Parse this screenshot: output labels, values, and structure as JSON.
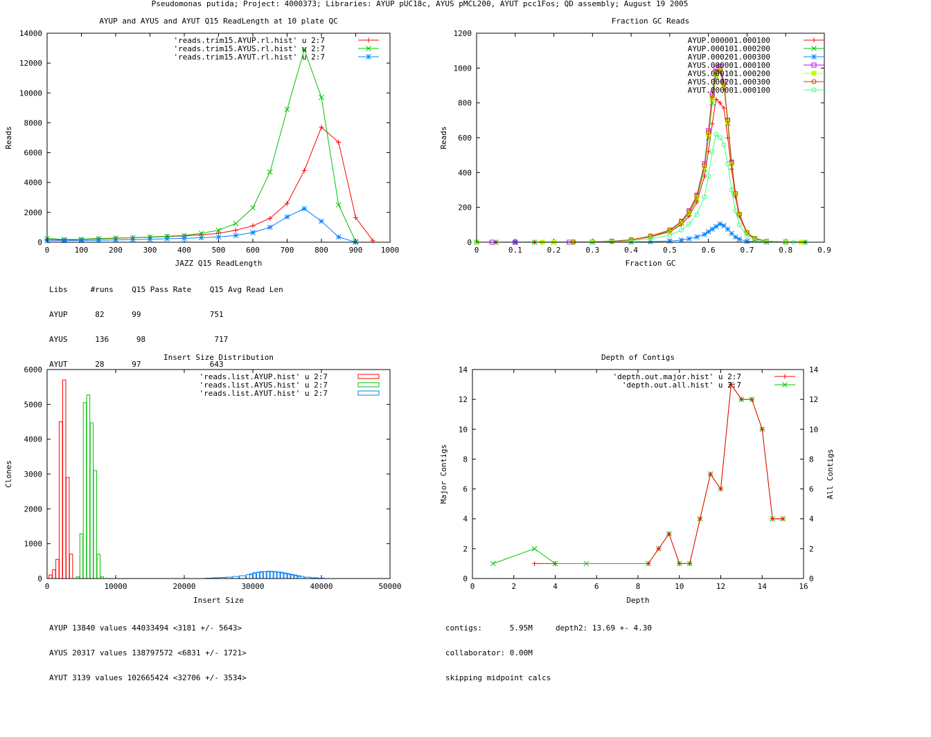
{
  "page_title": "Pseudomonas putida; Project: 4000373; Libraries: AYUP pUC18c, AYUS pMCL200, AYUT pcc1Fos; QD assembly; August 19 2005",
  "colors": {
    "red": "#ff0000",
    "green": "#00c000",
    "blue": "#0080ff",
    "magenta": "#c000ff",
    "yellow": "#c0ff00",
    "darkred": "#c04000",
    "lightgreen": "#40ff80"
  },
  "readlength_notes": {
    "line1": "Libs     #runs    Q15 Pass Rate    Q15 Avg Read Len",
    "line2": "AYUP      82      99               751",
    "line3": "AYUS      136      98               717",
    "line4": "AYUT      28      97               643"
  },
  "insert_notes": {
    "line1": "AYUP 13840 values 44033494 <3181 +/- 5643>",
    "line2": "AYUS 20317 values 138797572 <6831 +/- 1721>",
    "line3": "AYUT 3139 values 102665424 <32706 +/- 3534>"
  },
  "depth_notes": {
    "line1": "contigs:      5.95M     depth2: 13.69 +- 4.30",
    "line2": "collaborator: 0.00M",
    "line3": "skipping midpoint calcs"
  },
  "chart_data": [
    {
      "id": "readlength",
      "type": "line",
      "title": "AYUP and AYUS and AYUT Q15 ReadLength at 10 plate QC",
      "xlabel": "JAZZ Q15 ReadLength",
      "ylabel": "Reads",
      "xlim": [
        0,
        1000
      ],
      "ylim": [
        0,
        14000
      ],
      "xticks": [
        0,
        100,
        200,
        300,
        400,
        500,
        600,
        700,
        800,
        900,
        1000
      ],
      "yticks": [
        0,
        2000,
        4000,
        6000,
        8000,
        10000,
        12000,
        14000
      ],
      "legend": "top-right",
      "series": [
        {
          "name": "'reads.trim15.AYUP.rl.hist' u 2:7",
          "color": "#ff0000",
          "marker": "plus",
          "x": [
            0,
            50,
            100,
            150,
            200,
            250,
            300,
            350,
            400,
            450,
            500,
            550,
            600,
            650,
            700,
            750,
            800,
            850,
            900,
            950
          ],
          "y": [
            200,
            150,
            180,
            220,
            260,
            300,
            340,
            380,
            420,
            500,
            600,
            800,
            1100,
            1600,
            2600,
            4800,
            7700,
            6700,
            1650,
            100
          ]
        },
        {
          "name": "'reads.trim15.AYUS.rl.hist' u 2:7",
          "color": "#00c000",
          "marker": "x",
          "x": [
            0,
            50,
            100,
            150,
            200,
            250,
            300,
            350,
            400,
            450,
            500,
            550,
            600,
            650,
            700,
            750,
            800,
            850,
            900
          ],
          "y": [
            250,
            180,
            200,
            250,
            280,
            300,
            350,
            400,
            450,
            600,
            800,
            1250,
            2300,
            4700,
            8900,
            12900,
            9700,
            2500,
            50
          ]
        },
        {
          "name": "'reads.trim15.AYUT.rl.hist' u 2:7",
          "color": "#0080ff",
          "marker": "star",
          "x": [
            0,
            50,
            100,
            150,
            200,
            250,
            300,
            350,
            400,
            450,
            500,
            550,
            600,
            650,
            700,
            750,
            800,
            850,
            900
          ],
          "y": [
            100,
            110,
            120,
            130,
            150,
            170,
            200,
            230,
            260,
            300,
            350,
            450,
            650,
            1000,
            1700,
            2250,
            1400,
            350,
            0
          ]
        }
      ]
    },
    {
      "id": "gc",
      "type": "line",
      "title": "Fraction GC Reads",
      "xlabel": "Fraction GC",
      "ylabel": "Reads",
      "xlim": [
        0,
        0.9
      ],
      "ylim": [
        0,
        1200
      ],
      "xticks": [
        0,
        0.1,
        0.2,
        0.3,
        0.4,
        0.5,
        0.6,
        0.7,
        0.8,
        0.9
      ],
      "yticks": [
        0,
        200,
        400,
        600,
        800,
        1000,
        1200
      ],
      "legend": "top-right",
      "series": [
        {
          "name": "AYUP.000001.000100",
          "color": "#ff0000",
          "marker": "plus",
          "x": [
            0,
            0.05,
            0.1,
            0.15,
            0.2,
            0.25,
            0.3,
            0.35,
            0.4,
            0.45,
            0.5,
            0.53,
            0.55,
            0.57,
            0.59,
            0.6,
            0.61,
            0.62,
            0.63,
            0.64,
            0.65,
            0.66,
            0.67,
            0.68,
            0.7,
            0.72,
            0.75,
            0.8,
            0.85
          ],
          "y": [
            0,
            0,
            0,
            0,
            0,
            1,
            2,
            5,
            12,
            30,
            60,
            100,
            150,
            230,
            380,
            520,
            680,
            820,
            800,
            770,
            600,
            420,
            260,
            150,
            50,
            20,
            5,
            1,
            0
          ]
        },
        {
          "name": "AYUP.000101.000200",
          "color": "#00c000",
          "marker": "x",
          "x": [
            0,
            0.05,
            0.1,
            0.15,
            0.2,
            0.25,
            0.3,
            0.35,
            0.4,
            0.45,
            0.5,
            0.53,
            0.55,
            0.57,
            0.59,
            0.6,
            0.61,
            0.62,
            0.63,
            0.64,
            0.65,
            0.66,
            0.67,
            0.68,
            0.7,
            0.72,
            0.75,
            0.8,
            0.85
          ],
          "y": [
            0,
            0,
            0,
            0,
            0,
            1,
            2,
            5,
            13,
            32,
            65,
            110,
            165,
            250,
            420,
            600,
            800,
            950,
            980,
            900,
            680,
            450,
            280,
            160,
            55,
            22,
            6,
            1,
            0
          ]
        },
        {
          "name": "AYUP.000201.000300",
          "color": "#0080ff",
          "marker": "star",
          "x": [
            0,
            0.1,
            0.2,
            0.3,
            0.4,
            0.45,
            0.5,
            0.53,
            0.55,
            0.57,
            0.59,
            0.6,
            0.61,
            0.62,
            0.63,
            0.64,
            0.65,
            0.66,
            0.67,
            0.68,
            0.7,
            0.75,
            0.8
          ],
          "y": [
            0,
            0,
            0,
            0,
            1,
            3,
            7,
            12,
            20,
            30,
            45,
            60,
            75,
            90,
            105,
            95,
            75,
            50,
            30,
            17,
            5,
            1,
            0
          ]
        },
        {
          "name": "AYUS.000001.000100",
          "color": "#c000ff",
          "marker": "box",
          "x": [
            0,
            0.04,
            0.1,
            0.2,
            0.24,
            0.25,
            0.3,
            0.35,
            0.4,
            0.45,
            0.5,
            0.53,
            0.55,
            0.57,
            0.59,
            0.6,
            0.61,
            0.62,
            0.63,
            0.64,
            0.65,
            0.66,
            0.67,
            0.68,
            0.7,
            0.72,
            0.75,
            0.8
          ],
          "y": [
            0,
            0,
            0,
            0,
            0,
            1,
            2,
            6,
            14,
            35,
            70,
            120,
            180,
            270,
            450,
            640,
            850,
            1000,
            1010,
            920,
            700,
            460,
            280,
            160,
            55,
            22,
            6,
            1
          ]
        },
        {
          "name": "AYUS.000101.000200",
          "color": "#c0ff00",
          "marker": "fbox",
          "x": [
            0,
            0.17,
            0.2,
            0.25,
            0.3,
            0.35,
            0.4,
            0.45,
            0.5,
            0.53,
            0.55,
            0.57,
            0.59,
            0.6,
            0.61,
            0.62,
            0.63,
            0.64,
            0.65,
            0.66,
            0.67,
            0.68,
            0.7,
            0.72,
            0.75,
            0.8,
            0.84
          ],
          "y": [
            0,
            0,
            0,
            1,
            2,
            5,
            13,
            33,
            68,
            115,
            170,
            260,
            430,
            620,
            820,
            960,
            990,
            900,
            690,
            450,
            280,
            160,
            55,
            22,
            6,
            1,
            0
          ]
        },
        {
          "name": "AYUS.000201.000300",
          "color": "#c04000",
          "marker": "circle",
          "x": [
            0,
            0.25,
            0.3,
            0.35,
            0.4,
            0.45,
            0.5,
            0.53,
            0.55,
            0.57,
            0.59,
            0.6,
            0.61,
            0.62,
            0.63,
            0.64,
            0.65,
            0.66,
            0.67,
            0.68,
            0.7,
            0.72,
            0.75,
            0.8
          ],
          "y": [
            0,
            1,
            2,
            6,
            14,
            34,
            70,
            118,
            175,
            265,
            440,
            630,
            840,
            980,
            990,
            910,
            700,
            455,
            280,
            160,
            55,
            22,
            6,
            1
          ]
        },
        {
          "name": "AYUT.000001.000100",
          "color": "#40ff80",
          "marker": "circle",
          "x": [
            0,
            0.3,
            0.35,
            0.4,
            0.45,
            0.5,
            0.53,
            0.55,
            0.57,
            0.59,
            0.6,
            0.61,
            0.62,
            0.63,
            0.64,
            0.65,
            0.66,
            0.67,
            0.68,
            0.7,
            0.72,
            0.75,
            0.8,
            0.82,
            0.85
          ],
          "y": [
            0,
            1,
            3,
            8,
            20,
            40,
            70,
            105,
            160,
            260,
            380,
            520,
            620,
            600,
            560,
            450,
            300,
            180,
            100,
            35,
            14,
            4,
            1,
            0,
            0
          ]
        }
      ]
    },
    {
      "id": "insert",
      "type": "bar",
      "title": "Insert Size Distribution",
      "xlabel": "Insert Size",
      "ylabel": "Clones",
      "xlim": [
        0,
        50000
      ],
      "ylim": [
        0,
        6000
      ],
      "xticks": [
        0,
        10000,
        20000,
        30000,
        40000,
        50000
      ],
      "yticks": [
        0,
        1000,
        2000,
        3000,
        4000,
        5000,
        6000
      ],
      "legend": "top-right",
      "series": [
        {
          "name": "'reads.list.AYUP.hist' u 2:7",
          "color": "#ff0000",
          "x": [
            500,
            1000,
            1500,
            2000,
            2500,
            3000,
            3500
          ],
          "y": [
            100,
            250,
            550,
            4500,
            5700,
            2900,
            700
          ]
        },
        {
          "name": "'reads.list.AYUS.hist' u 2:7",
          "color": "#00c000",
          "x": [
            4500,
            5000,
            5500,
            6000,
            6500,
            7000,
            7500,
            8000
          ],
          "y": [
            50,
            1280,
            5050,
            5270,
            4470,
            3100,
            700,
            50
          ]
        },
        {
          "name": "'reads.list.AYUT.hist' u 2:7",
          "color": "#0080ff",
          "x": [
            23500,
            24500,
            25500,
            26500,
            27500,
            28500,
            29500,
            30000,
            30500,
            31000,
            31500,
            32000,
            32500,
            33000,
            33500,
            34000,
            34500,
            35000,
            35500,
            36000,
            36500,
            37000,
            38000,
            39000,
            40000
          ],
          "y": [
            10,
            20,
            30,
            40,
            60,
            80,
            110,
            140,
            170,
            180,
            200,
            200,
            210,
            200,
            190,
            180,
            160,
            140,
            120,
            100,
            80,
            60,
            40,
            20,
            10
          ]
        }
      ]
    },
    {
      "id": "depth",
      "type": "line",
      "title": "Depth of Contigs",
      "xlabel": "Depth",
      "ylabel": "Major Contigs",
      "y2label": "All Contigs",
      "xlim": [
        0,
        16
      ],
      "ylim": [
        0,
        14
      ],
      "xticks": [
        0,
        2,
        4,
        6,
        8,
        10,
        12,
        14,
        16
      ],
      "yticks": [
        0,
        2,
        4,
        6,
        8,
        10,
        12,
        14
      ],
      "legend": "top-right",
      "series": [
        {
          "name": "'depth.out.major.hist' u 2:7",
          "color": "#ff0000",
          "marker": "plus",
          "x": [
            3,
            4
          ],
          "y": [
            1,
            1
          ]
        },
        {
          "name": "'depth.out.all.hist' u 2:7",
          "color": "#00c000",
          "marker": "x",
          "x": [
            1,
            3,
            4,
            5.5,
            8.5,
            9,
            9.5,
            10,
            10.5,
            11,
            11.5,
            12,
            12.5,
            13,
            13.5,
            14,
            14.5,
            15
          ],
          "y": [
            1,
            2,
            1,
            1,
            1,
            2,
            3,
            1,
            1,
            4,
            7,
            6,
            13,
            12,
            12,
            10,
            4,
            4
          ]
        },
        {
          "name": "",
          "color": "#ff0000",
          "marker": "plus",
          "nolegend": true,
          "x": [
            8.5,
            9,
            9.5,
            10,
            10.5,
            11,
            11.5,
            12,
            12.5,
            13,
            13.5,
            14,
            14.5,
            15
          ],
          "y": [
            1,
            2,
            3,
            1,
            1,
            4,
            7,
            6,
            13,
            12,
            12,
            10,
            4,
            4
          ]
        }
      ]
    }
  ]
}
